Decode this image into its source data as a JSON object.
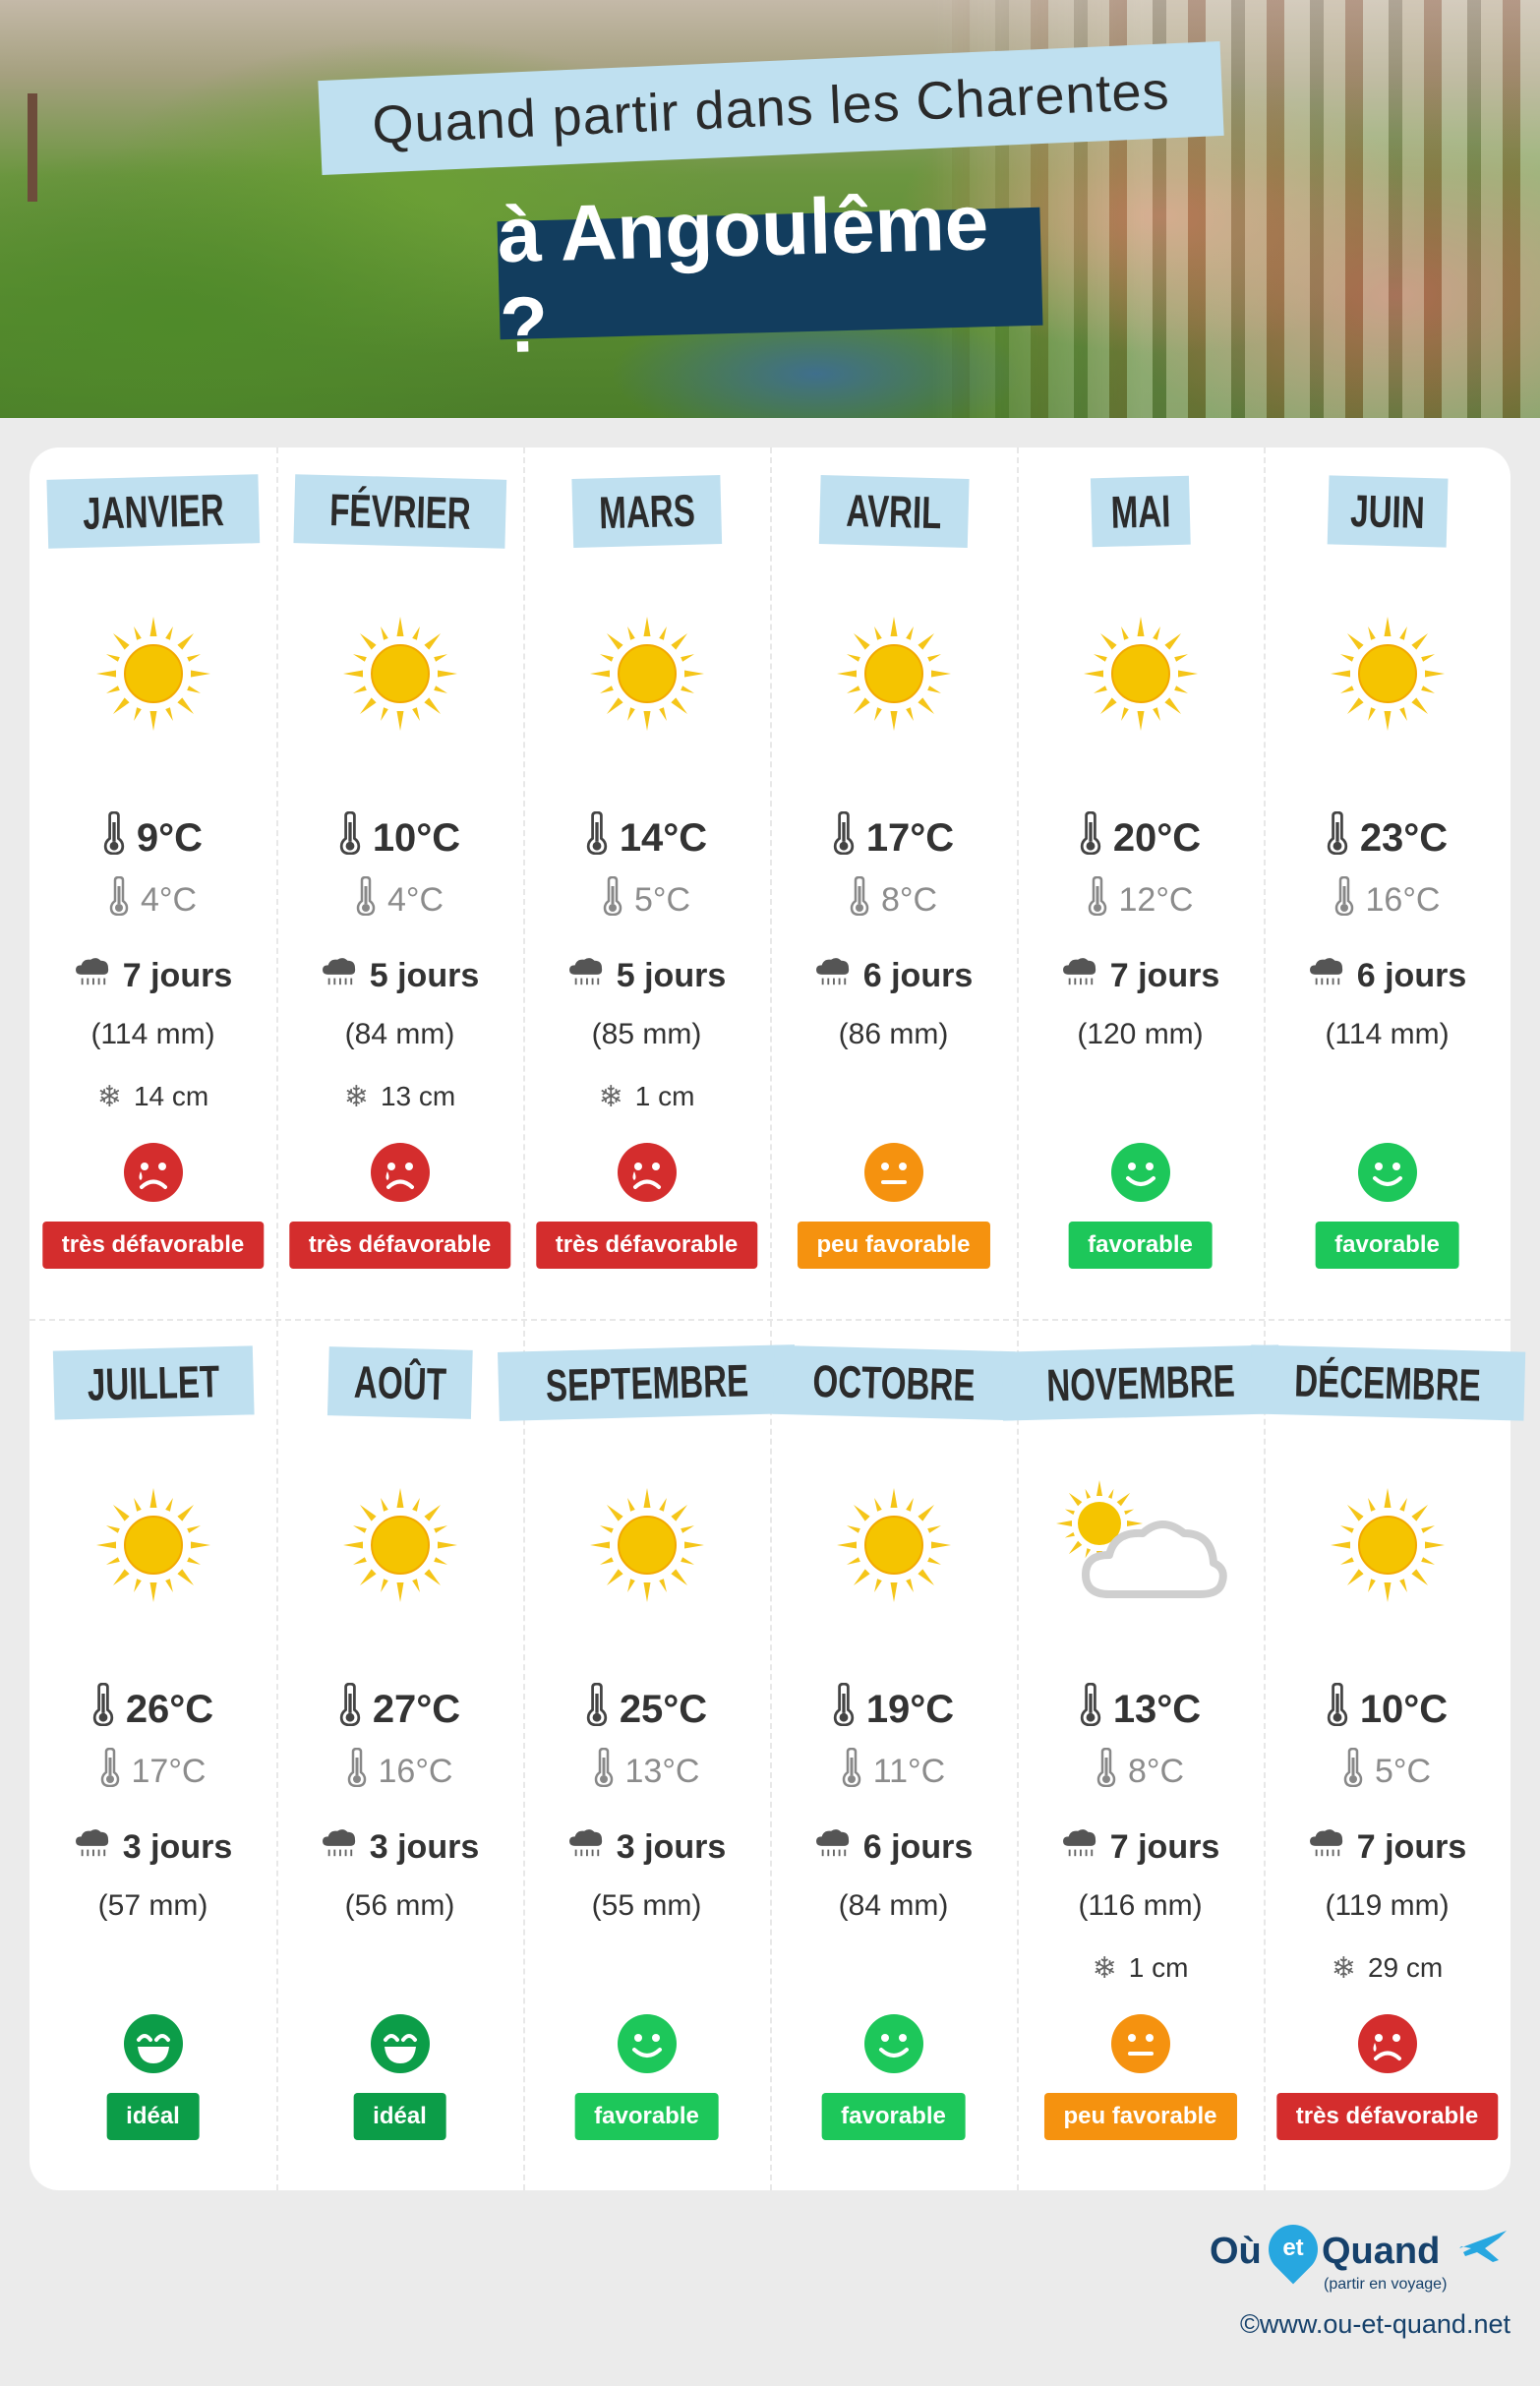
{
  "header": {
    "line1": "Quand partir dans les Charentes",
    "line2": "à Angoulême ?"
  },
  "colors": {
    "accent_label": "#bfe0f0",
    "title_dark": "#123d5e",
    "very_unfavorable": "#d42d2d",
    "little_favorable": "#f5920f",
    "favorable": "#1dc75a",
    "ideal": "#0c9d48"
  },
  "months": [
    {
      "name": "JANVIER",
      "weather_icon": "sun-icon",
      "tmax": "9°C",
      "tmin": "4°C",
      "rain_days": "7 jours",
      "rain_mm": "(114 mm)",
      "snow": "14 cm",
      "mood_icon": "sad-face-icon",
      "rating": "très défavorable",
      "rating_color": "#d42d2d"
    },
    {
      "name": "FÉVRIER",
      "weather_icon": "sun-icon",
      "tmax": "10°C",
      "tmin": "4°C",
      "rain_days": "5 jours",
      "rain_mm": "(84 mm)",
      "snow": "13 cm",
      "mood_icon": "sad-face-icon",
      "rating": "très défavorable",
      "rating_color": "#d42d2d"
    },
    {
      "name": "MARS",
      "weather_icon": "sun-icon",
      "tmax": "14°C",
      "tmin": "5°C",
      "rain_days": "5 jours",
      "rain_mm": "(85 mm)",
      "snow": "1 cm",
      "mood_icon": "sad-face-icon",
      "rating": "très défavorable",
      "rating_color": "#d42d2d"
    },
    {
      "name": "AVRIL",
      "weather_icon": "sun-icon",
      "tmax": "17°C",
      "tmin": "8°C",
      "rain_days": "6 jours",
      "rain_mm": "(86 mm)",
      "snow": "",
      "mood_icon": "neutral-face-icon",
      "rating": "peu favorable",
      "rating_color": "#f5920f"
    },
    {
      "name": "MAI",
      "weather_icon": "sun-icon",
      "tmax": "20°C",
      "tmin": "12°C",
      "rain_days": "7 jours",
      "rain_mm": "(120 mm)",
      "snow": "",
      "mood_icon": "smile-face-icon",
      "rating": "favorable",
      "rating_color": "#1dc75a"
    },
    {
      "name": "JUIN",
      "weather_icon": "sun-icon",
      "tmax": "23°C",
      "tmin": "16°C",
      "rain_days": "6 jours",
      "rain_mm": "(114 mm)",
      "snow": "",
      "mood_icon": "smile-face-icon",
      "rating": "favorable",
      "rating_color": "#1dc75a"
    },
    {
      "name": "JUILLET",
      "weather_icon": "sun-icon",
      "tmax": "26°C",
      "tmin": "17°C",
      "rain_days": "3 jours",
      "rain_mm": "(57 mm)",
      "snow": "",
      "mood_icon": "grin-face-icon",
      "rating": "idéal",
      "rating_color": "#0c9d48"
    },
    {
      "name": "AOÛT",
      "weather_icon": "sun-icon",
      "tmax": "27°C",
      "tmin": "16°C",
      "rain_days": "3 jours",
      "rain_mm": "(56 mm)",
      "snow": "",
      "mood_icon": "grin-face-icon",
      "rating": "idéal",
      "rating_color": "#0c9d48"
    },
    {
      "name": "SEPTEMBRE",
      "weather_icon": "sun-icon",
      "tmax": "25°C",
      "tmin": "13°C",
      "rain_days": "3 jours",
      "rain_mm": "(55 mm)",
      "snow": "",
      "mood_icon": "smile-face-icon",
      "rating": "favorable",
      "rating_color": "#1dc75a"
    },
    {
      "name": "OCTOBRE",
      "weather_icon": "sun-icon",
      "tmax": "19°C",
      "tmin": "11°C",
      "rain_days": "6 jours",
      "rain_mm": "(84 mm)",
      "snow": "",
      "mood_icon": "smile-face-icon",
      "rating": "favorable",
      "rating_color": "#1dc75a"
    },
    {
      "name": "NOVEMBRE",
      "weather_icon": "sun-cloud-icon",
      "tmax": "13°C",
      "tmin": "8°C",
      "rain_days": "7 jours",
      "rain_mm": "(116 mm)",
      "snow": "1 cm",
      "mood_icon": "neutral-face-icon",
      "rating": "peu favorable",
      "rating_color": "#f5920f"
    },
    {
      "name": "DÉCEMBRE",
      "weather_icon": "sun-icon",
      "tmax": "10°C",
      "tmin": "5°C",
      "rain_days": "7 jours",
      "rain_mm": "(119 mm)",
      "snow": "29 cm",
      "mood_icon": "sad-face-icon",
      "rating": "très défavorable",
      "rating_color": "#d42d2d"
    }
  ],
  "footer": {
    "logo_ou": "Où",
    "logo_et": "et",
    "logo_quand": "Quand",
    "logo_tagline": "(partir en voyage)",
    "copyright": "©www.ou-et-quand.net"
  }
}
